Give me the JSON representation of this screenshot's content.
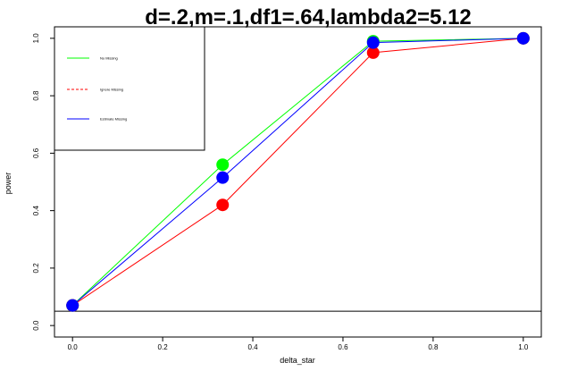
{
  "chart_data": {
    "type": "line",
    "title": "d=.2,m=.1,df1=.64,lambda2=5.12",
    "xlabel": "delta_star",
    "ylabel": "power",
    "x": [
      0,
      0.333,
      0.667,
      1
    ],
    "xlim": [
      -0.04,
      1.04
    ],
    "ylim": [
      -0.04,
      1.04
    ],
    "xticks": [
      0.0,
      0.2,
      0.4,
      0.6,
      0.8,
      1.0
    ],
    "xtick_labels": [
      "0.0",
      "0.2",
      "0.4",
      "0.6",
      "0.8",
      "1.0"
    ],
    "yticks": [
      0.0,
      0.2,
      0.4,
      0.6,
      0.8,
      1.0
    ],
    "ytick_labels": [
      "0.0",
      "0.2",
      "0.4",
      "0.6",
      "0.8",
      "1.0"
    ],
    "reference_line": 0.05,
    "grid": false,
    "legend_position": "top-left",
    "series": [
      {
        "name": "No Missing",
        "color": "#00ff00",
        "line_style": "solid",
        "values": [
          0.07,
          0.56,
          0.99,
          1.0
        ]
      },
      {
        "name": "Ignore Missing",
        "color": "#ff0000",
        "line_style": "dashed",
        "values": [
          0.07,
          0.42,
          0.95,
          1.0
        ]
      },
      {
        "name": "Estimate Missing",
        "color": "#0000ff",
        "line_style": "solid",
        "values": [
          0.07,
          0.515,
          0.985,
          1.0
        ]
      }
    ]
  }
}
